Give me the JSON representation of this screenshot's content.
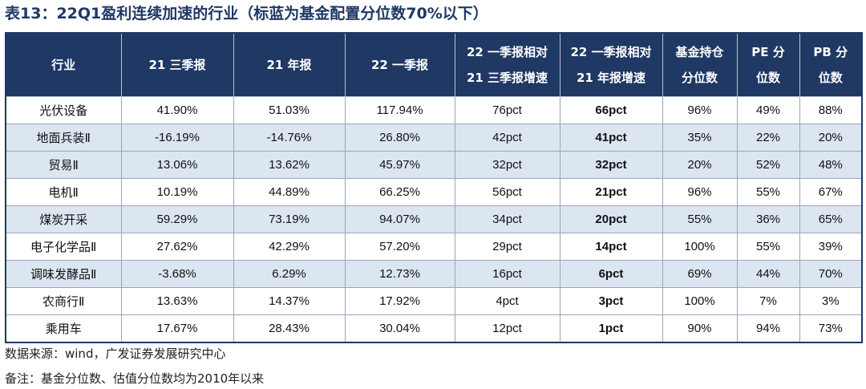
{
  "title": "表13：22Q1盈利连续加速的行业（标蓝为基金配置分位数70%以下）",
  "headers": [
    {
      "l1": "行业",
      "l2": ""
    },
    {
      "l1": "21 三季报",
      "l2": ""
    },
    {
      "l1": "21 年报",
      "l2": ""
    },
    {
      "l1": "22 一季报",
      "l2": ""
    },
    {
      "l1": "22 一季报相对",
      "l2": "21 三季报增速"
    },
    {
      "l1": "22 一季报相对",
      "l2": "21 年报增速"
    },
    {
      "l1": "基金持仓",
      "l2": "分位数"
    },
    {
      "l1": "PE 分",
      "l2": "位数"
    },
    {
      "l1": "PB 分",
      "l2": "位数"
    }
  ],
  "rows": [
    {
      "highlight": false,
      "cells": [
        "光伏设备",
        "41.90%",
        "51.03%",
        "117.94%",
        "76pct",
        "66pct",
        "96%",
        "49%",
        "88%"
      ]
    },
    {
      "highlight": true,
      "cells": [
        "地面兵装Ⅱ",
        "-16.19%",
        "-14.76%",
        "26.80%",
        "42pct",
        "41pct",
        "35%",
        "22%",
        "20%"
      ]
    },
    {
      "highlight": true,
      "cells": [
        "贸易Ⅱ",
        "13.06%",
        "13.62%",
        "45.97%",
        "32pct",
        "32pct",
        "20%",
        "52%",
        "48%"
      ]
    },
    {
      "highlight": false,
      "cells": [
        "电机Ⅱ",
        "10.19%",
        "44.89%",
        "66.25%",
        "56pct",
        "21pct",
        "96%",
        "55%",
        "67%"
      ]
    },
    {
      "highlight": true,
      "cells": [
        "煤炭开采",
        "59.29%",
        "73.19%",
        "94.07%",
        "34pct",
        "20pct",
        "55%",
        "36%",
        "65%"
      ]
    },
    {
      "highlight": false,
      "cells": [
        "电子化学品Ⅱ",
        "27.62%",
        "42.29%",
        "57.20%",
        "29pct",
        "14pct",
        "100%",
        "55%",
        "39%"
      ]
    },
    {
      "highlight": true,
      "cells": [
        "调味发酵品Ⅱ",
        "-3.68%",
        "6.29%",
        "12.73%",
        "16pct",
        "6pct",
        "69%",
        "44%",
        "70%"
      ]
    },
    {
      "highlight": false,
      "cells": [
        "农商行Ⅱ",
        "13.63%",
        "14.37%",
        "17.92%",
        "4pct",
        "3pct",
        "100%",
        "7%",
        "3%"
      ]
    },
    {
      "highlight": false,
      "cells": [
        "乘用车",
        "17.67%",
        "28.43%",
        "30.04%",
        "12pct",
        "1pct",
        "90%",
        "94%",
        "73%"
      ]
    }
  ],
  "source": "数据来源：wind，广发证券发展研究中心",
  "note": "备注：基金分位数、估值分位数均为2010年以来",
  "colors": {
    "header_bg": "#1f3864",
    "highlight_bg": "#dce6f1",
    "title": "#1f3864"
  }
}
